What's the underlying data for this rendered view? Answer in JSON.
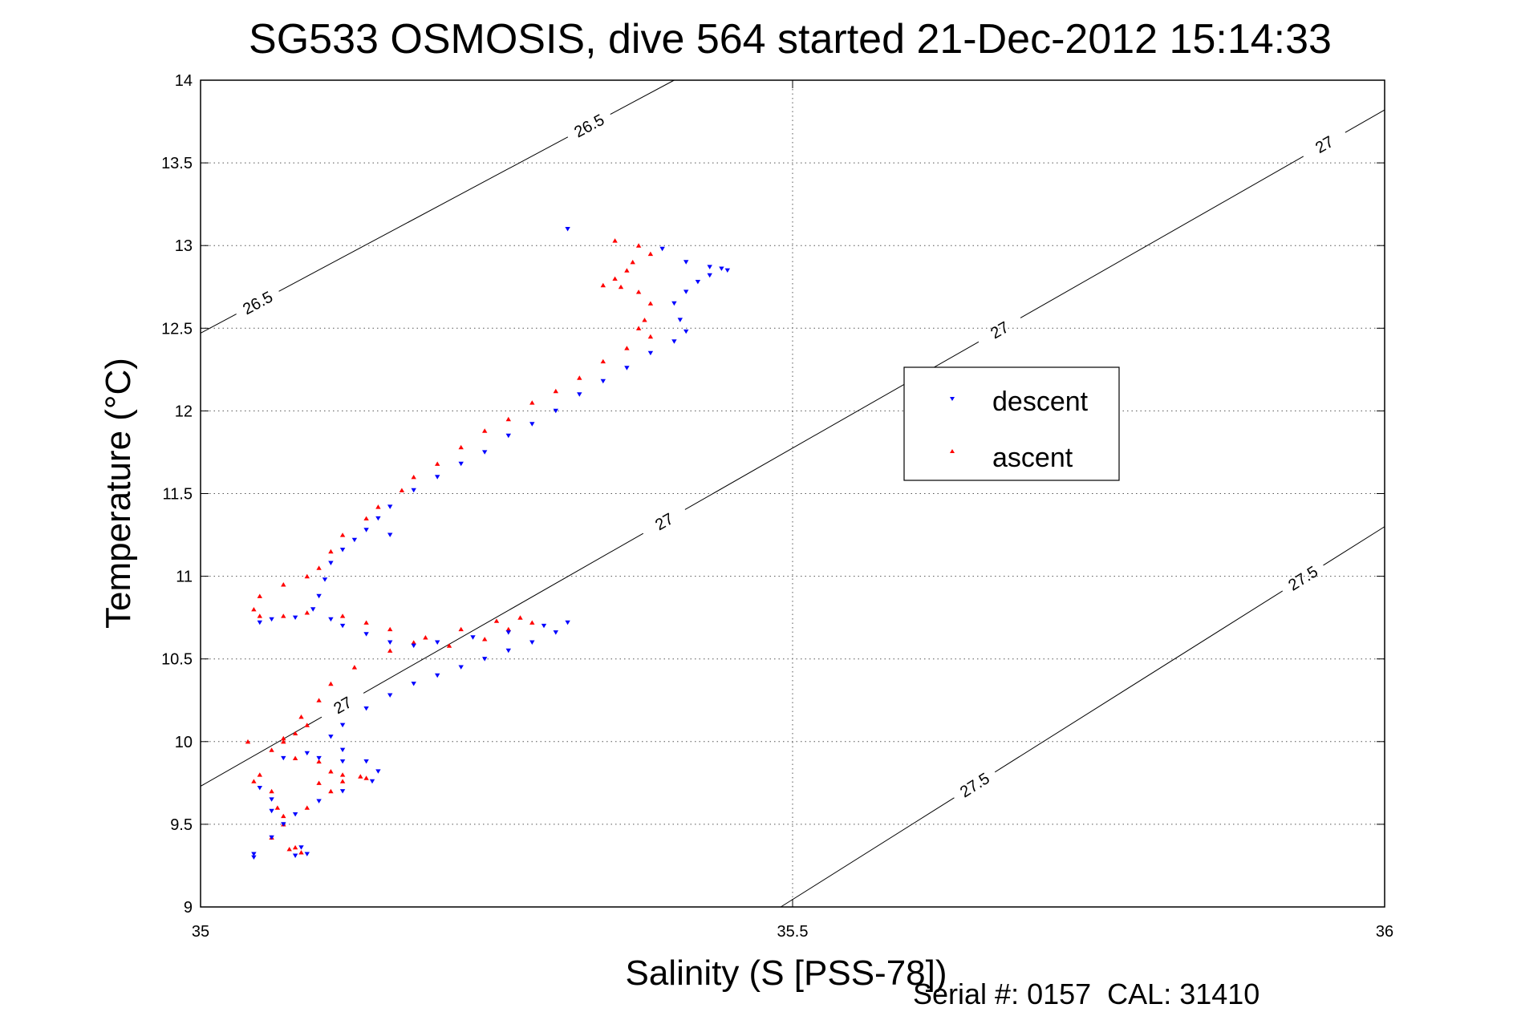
{
  "chart_data": {
    "type": "scatter",
    "title": "SG533 OSMOSIS, dive 564 started 21-Dec-2012 15:14:33",
    "xlabel": "Salinity (S [PSS-78])",
    "ylabel": "Temperature (°C)",
    "xlim": [
      35,
      36
    ],
    "ylim": [
      9,
      14
    ],
    "xticks": [
      35,
      35.5,
      36
    ],
    "xtick_labels": [
      "35",
      "35.5",
      "36"
    ],
    "yticks": [
      9,
      9.5,
      10,
      10.5,
      11,
      11.5,
      12,
      12.5,
      13,
      13.5,
      14
    ],
    "ytick_labels": [
      "9",
      "9.5",
      "10",
      "10.5",
      "11",
      "11.5",
      "12",
      "12.5",
      "13",
      "13.5",
      "14"
    ],
    "grid": true,
    "legend_position": "center-right",
    "footer": "Serial #: 0157  CAL: 31410",
    "density_contours": [
      {
        "level": "26.5",
        "points": [
          [
            35.0,
            12.47
          ],
          [
            35.4,
            14.0
          ]
        ],
        "labels": [
          [
            35.05,
            12.63
          ],
          [
            35.33,
            13.7
          ]
        ]
      },
      {
        "level": "27",
        "points": [
          [
            35.0,
            9.73
          ],
          [
            36.0,
            13.82
          ]
        ],
        "labels": [
          [
            35.12,
            10.22
          ],
          [
            35.39,
            11.35
          ],
          [
            35.67,
            12.55
          ],
          [
            35.95,
            13.6
          ]
        ]
      },
      {
        "level": "27.5",
        "points": [
          [
            35.49,
            9.0
          ],
          [
            36.0,
            11.3
          ]
        ],
        "labels": [
          [
            35.65,
            9.78
          ],
          [
            35.93,
            11.0
          ]
        ]
      }
    ],
    "series": [
      {
        "name": "descent",
        "color": "#0000ff",
        "marker": "triangle-down",
        "points": [
          [
            35.31,
            13.1
          ],
          [
            35.39,
            12.98
          ],
          [
            35.41,
            12.9
          ],
          [
            35.43,
            12.87
          ],
          [
            35.44,
            12.86
          ],
          [
            35.445,
            12.85
          ],
          [
            35.43,
            12.82
          ],
          [
            35.42,
            12.78
          ],
          [
            35.41,
            12.72
          ],
          [
            35.4,
            12.65
          ],
          [
            35.405,
            12.55
          ],
          [
            35.41,
            12.48
          ],
          [
            35.4,
            12.42
          ],
          [
            35.38,
            12.35
          ],
          [
            35.36,
            12.26
          ],
          [
            35.34,
            12.18
          ],
          [
            35.32,
            12.1
          ],
          [
            35.3,
            12.0
          ],
          [
            35.28,
            11.92
          ],
          [
            35.26,
            11.85
          ],
          [
            35.24,
            11.75
          ],
          [
            35.22,
            11.68
          ],
          [
            35.2,
            11.6
          ],
          [
            35.18,
            11.52
          ],
          [
            35.16,
            11.42
          ],
          [
            35.15,
            11.35
          ],
          [
            35.14,
            11.28
          ],
          [
            35.13,
            11.22
          ],
          [
            35.12,
            11.16
          ],
          [
            35.16,
            11.25
          ],
          [
            35.11,
            11.08
          ],
          [
            35.105,
            10.98
          ],
          [
            35.1,
            10.88
          ],
          [
            35.095,
            10.8
          ],
          [
            35.08,
            10.75
          ],
          [
            35.06,
            10.74
          ],
          [
            35.05,
            10.72
          ],
          [
            35.11,
            10.74
          ],
          [
            35.12,
            10.7
          ],
          [
            35.14,
            10.65
          ],
          [
            35.16,
            10.6
          ],
          [
            35.18,
            10.58
          ],
          [
            35.2,
            10.6
          ],
          [
            35.23,
            10.63
          ],
          [
            35.26,
            10.66
          ],
          [
            35.29,
            10.7
          ],
          [
            35.31,
            10.72
          ],
          [
            35.3,
            10.66
          ],
          [
            35.28,
            10.6
          ],
          [
            35.26,
            10.55
          ],
          [
            35.24,
            10.5
          ],
          [
            35.22,
            10.45
          ],
          [
            35.2,
            10.4
          ],
          [
            35.18,
            10.35
          ],
          [
            35.16,
            10.28
          ],
          [
            35.14,
            10.2
          ],
          [
            35.12,
            10.1
          ],
          [
            35.11,
            10.03
          ],
          [
            35.12,
            9.95
          ],
          [
            35.14,
            9.88
          ],
          [
            35.15,
            9.82
          ],
          [
            35.145,
            9.76
          ],
          [
            35.12,
            9.7
          ],
          [
            35.1,
            9.64
          ],
          [
            35.08,
            9.56
          ],
          [
            35.07,
            9.5
          ],
          [
            35.06,
            9.42
          ],
          [
            35.085,
            9.36
          ],
          [
            35.09,
            9.32
          ],
          [
            35.08,
            9.31
          ],
          [
            35.045,
            9.3
          ],
          [
            35.07,
            9.9
          ],
          [
            35.09,
            9.93
          ],
          [
            35.1,
            9.9
          ],
          [
            35.12,
            9.88
          ],
          [
            35.05,
            9.72
          ],
          [
            35.06,
            9.58
          ],
          [
            35.06,
            9.65
          ],
          [
            35.045,
            9.32
          ]
        ]
      },
      {
        "name": "ascent",
        "color": "#ff0000",
        "marker": "triangle-up",
        "points": [
          [
            35.35,
            13.03
          ],
          [
            35.37,
            13.0
          ],
          [
            35.38,
            12.95
          ],
          [
            35.365,
            12.9
          ],
          [
            35.36,
            12.85
          ],
          [
            35.35,
            12.8
          ],
          [
            35.34,
            12.76
          ],
          [
            35.355,
            12.75
          ],
          [
            35.37,
            12.72
          ],
          [
            35.38,
            12.65
          ],
          [
            35.375,
            12.55
          ],
          [
            35.37,
            12.5
          ],
          [
            35.38,
            12.45
          ],
          [
            35.36,
            12.38
          ],
          [
            35.34,
            12.3
          ],
          [
            35.32,
            12.2
          ],
          [
            35.3,
            12.12
          ],
          [
            35.28,
            12.05
          ],
          [
            35.26,
            11.95
          ],
          [
            35.24,
            11.88
          ],
          [
            35.22,
            11.78
          ],
          [
            35.2,
            11.68
          ],
          [
            35.18,
            11.6
          ],
          [
            35.17,
            11.52
          ],
          [
            35.15,
            11.42
          ],
          [
            35.14,
            11.35
          ],
          [
            35.12,
            11.25
          ],
          [
            35.11,
            11.15
          ],
          [
            35.1,
            11.05
          ],
          [
            35.09,
            11.0
          ],
          [
            35.07,
            10.95
          ],
          [
            35.05,
            10.88
          ],
          [
            35.045,
            10.8
          ],
          [
            35.05,
            10.76
          ],
          [
            35.07,
            10.76
          ],
          [
            35.09,
            10.78
          ],
          [
            35.12,
            10.76
          ],
          [
            35.14,
            10.72
          ],
          [
            35.16,
            10.68
          ],
          [
            35.18,
            10.6
          ],
          [
            35.21,
            10.58
          ],
          [
            35.24,
            10.62
          ],
          [
            35.26,
            10.68
          ],
          [
            35.28,
            10.72
          ],
          [
            35.27,
            10.75
          ],
          [
            35.25,
            10.73
          ],
          [
            35.22,
            10.68
          ],
          [
            35.19,
            10.63
          ],
          [
            35.16,
            10.55
          ],
          [
            35.13,
            10.45
          ],
          [
            35.11,
            10.35
          ],
          [
            35.1,
            10.25
          ],
          [
            35.085,
            10.15
          ],
          [
            35.08,
            10.05
          ],
          [
            35.07,
            10.0
          ],
          [
            35.06,
            9.95
          ],
          [
            35.08,
            9.9
          ],
          [
            35.1,
            9.88
          ],
          [
            35.11,
            9.82
          ],
          [
            35.12,
            9.76
          ],
          [
            35.11,
            9.7
          ],
          [
            35.09,
            9.6
          ],
          [
            35.07,
            9.5
          ],
          [
            35.06,
            9.42
          ],
          [
            35.08,
            9.36
          ],
          [
            35.085,
            9.33
          ],
          [
            35.075,
            9.35
          ],
          [
            35.05,
            9.8
          ],
          [
            35.045,
            9.76
          ],
          [
            35.06,
            9.7
          ],
          [
            35.065,
            9.6
          ],
          [
            35.07,
            9.55
          ],
          [
            35.1,
            9.75
          ],
          [
            35.12,
            9.8
          ],
          [
            35.135,
            9.79
          ],
          [
            35.14,
            9.78
          ],
          [
            35.04,
            10.0
          ],
          [
            35.07,
            10.02
          ],
          [
            35.09,
            10.1
          ]
        ]
      }
    ]
  }
}
